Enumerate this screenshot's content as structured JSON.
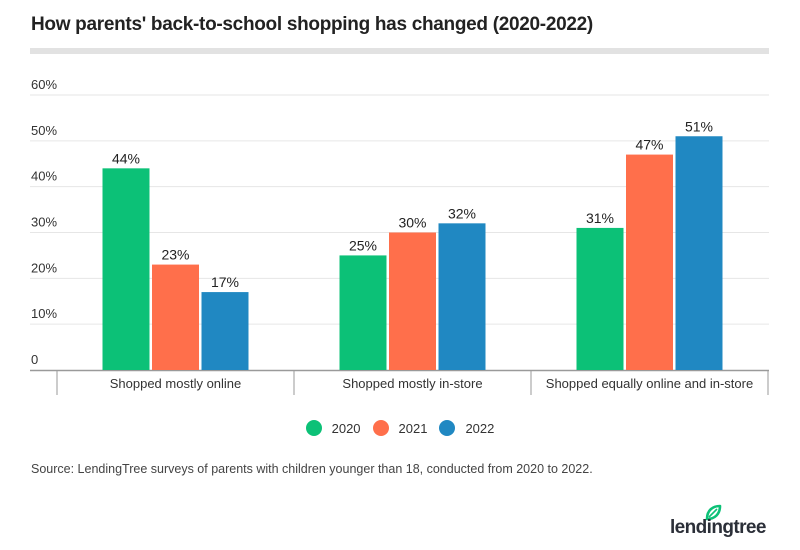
{
  "title": "How parents' back-to-school shopping has changed (2020-2022)",
  "source": "Source: LendingTree surveys of parents with children younger than 18, conducted from 2020 to 2022.",
  "logo": {
    "text": "lendingtree",
    "icon": "leaf-icon",
    "icon_color": "#0cc177",
    "text_color": "#2b2f38"
  },
  "chart_data": {
    "type": "bar",
    "title": "How parents' back-to-school shopping has changed (2020-2022)",
    "xlabel": "",
    "ylabel": "",
    "ylim": [
      0,
      60
    ],
    "yticks": [
      0,
      10,
      20,
      30,
      40,
      50,
      60
    ],
    "ytick_labels": [
      "0",
      "10%",
      "20%",
      "30%",
      "40%",
      "50%",
      "60%"
    ],
    "grid": true,
    "legend_position": "bottom-center",
    "categories": [
      "Shopped mostly online",
      "Shopped mostly in-store",
      "Shopped equally online and in-store"
    ],
    "series": [
      {
        "name": "2020",
        "color": "#0cc177",
        "values": [
          44,
          25,
          31
        ],
        "labels": [
          "44%",
          "25%",
          "31%"
        ]
      },
      {
        "name": "2021",
        "color": "#ff6f4b",
        "values": [
          23,
          30,
          47
        ],
        "labels": [
          "23%",
          "30%",
          "47%"
        ]
      },
      {
        "name": "2022",
        "color": "#2088c2",
        "values": [
          17,
          32,
          51
        ],
        "labels": [
          "17%",
          "32%",
          "51%"
        ]
      }
    ]
  }
}
